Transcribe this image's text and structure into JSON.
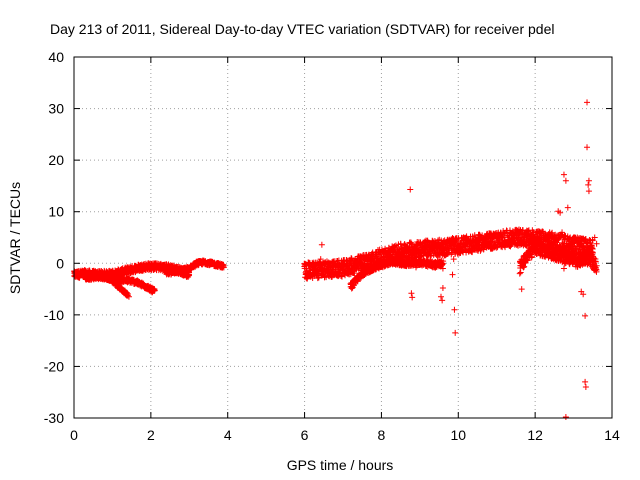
{
  "chart_data": {
    "type": "scatter",
    "title": "Day 213 of 2011, Sidereal Day-to-day VTEC variation (SDTVAR) for receiver pdel",
    "xlabel": "GPS time / hours",
    "ylabel": "SDTVAR / TECUs",
    "xlim": [
      0,
      14
    ],
    "ylim": [
      -30,
      40
    ],
    "xticks": [
      0,
      2,
      4,
      6,
      8,
      10,
      12,
      14
    ],
    "yticks": [
      -30,
      -20,
      -10,
      0,
      10,
      20,
      30,
      40
    ],
    "grid": true,
    "marker": "+",
    "color": "#ff0000",
    "series": [
      {
        "name": "SDTVAR",
        "bands": [
          {
            "x": [
              0.0,
              0.3,
              0.6,
              1.0,
              1.3,
              1.6,
              1.9,
              2.2,
              2.5,
              2.8,
              3.0
            ],
            "y": [
              -2.2,
              -2.0,
              -2.2,
              -2.1,
              -1.6,
              -1.0,
              -0.6,
              -0.7,
              -0.9,
              -1.5,
              -2.2
            ],
            "spread": 1.4
          },
          {
            "x": [
              0.3,
              0.7,
              1.0,
              1.3,
              1.6,
              1.9,
              2.1
            ],
            "y": [
              -2.8,
              -2.6,
              -3.0,
              -3.2,
              -3.6,
              -4.6,
              -5.5
            ],
            "spread": 0.9
          },
          {
            "x": [
              0.8,
              1.0,
              1.2,
              1.4
            ],
            "y": [
              -2.5,
              -3.5,
              -4.8,
              -6.2
            ],
            "spread": 0.6
          },
          {
            "x": [
              2.4,
              2.7,
              3.0,
              3.2,
              3.4,
              3.6,
              3.8,
              3.9
            ],
            "y": [
              -2.0,
              -1.5,
              -1.0,
              0.0,
              0.2,
              -0.1,
              -0.4,
              -0.6
            ],
            "spread": 0.8
          },
          {
            "x": [
              6.0,
              6.3,
              6.6,
              7.0,
              7.5,
              8.0,
              8.5,
              9.0,
              9.5,
              10.0,
              10.5,
              11.0,
              11.5,
              12.0,
              12.5,
              13.0,
              13.5
            ],
            "y": [
              -1.5,
              -1.3,
              -1.2,
              -1.0,
              0.0,
              1.2,
              2.2,
              2.8,
              3.0,
              3.4,
              3.9,
              4.5,
              5.0,
              4.8,
              4.3,
              3.5,
              3.0
            ],
            "spread": 3.2
          },
          {
            "x": [
              7.2,
              7.4,
              7.6,
              7.9,
              8.3
            ],
            "y": [
              -4.5,
              -2.8,
              -1.5,
              -0.5,
              0.5
            ],
            "spread": 1.2
          },
          {
            "x": [
              8.2,
              8.6,
              9.0,
              9.4,
              9.6
            ],
            "y": [
              0.5,
              0.0,
              0.2,
              -0.3,
              0.0
            ],
            "spread": 1.2
          },
          {
            "x": [
              11.6,
              11.8,
              12.0,
              12.2,
              12.5,
              12.8,
              13.1,
              13.4,
              13.6
            ],
            "y": [
              -1.0,
              1.5,
              3.0,
              2.5,
              2.0,
              1.0,
              0.5,
              1.0,
              -0.5
            ],
            "spread": 2.5
          }
        ],
        "points": [
          [
            1.43,
            -6.5
          ],
          [
            6.45,
            3.6
          ],
          [
            6.42,
            0.8
          ],
          [
            8.75,
            14.3
          ],
          [
            8.78,
            -5.8
          ],
          [
            8.8,
            -6.6
          ],
          [
            8.9,
            -0.8
          ],
          [
            9.1,
            -0.3
          ],
          [
            9.5,
            0.6
          ],
          [
            9.6,
            -4.8
          ],
          [
            9.55,
            -6.5
          ],
          [
            9.58,
            -7.2
          ],
          [
            9.6,
            -1.0
          ],
          [
            9.85,
            -2.2
          ],
          [
            9.9,
            -9.0
          ],
          [
            9.92,
            -13.5
          ],
          [
            9.88,
            0.8
          ],
          [
            11.65,
            -5.0
          ],
          [
            11.6,
            -2.0
          ],
          [
            11.7,
            0.5
          ],
          [
            12.6,
            10.1
          ],
          [
            12.65,
            9.8
          ],
          [
            12.75,
            17.2
          ],
          [
            12.8,
            16.0
          ],
          [
            12.85,
            10.8
          ],
          [
            12.7,
            6.0
          ],
          [
            12.75,
            -1.0
          ],
          [
            12.8,
            -29.8
          ],
          [
            12.9,
            3.5
          ],
          [
            13.2,
            -5.5
          ],
          [
            13.25,
            -6.0
          ],
          [
            13.3,
            -10.2
          ],
          [
            13.3,
            -23.0
          ],
          [
            13.32,
            -24.0
          ],
          [
            13.35,
            31.2
          ],
          [
            13.35,
            22.5
          ],
          [
            13.4,
            16.0
          ],
          [
            13.38,
            15.2
          ],
          [
            13.4,
            14.0
          ],
          [
            13.5,
            2.0
          ],
          [
            13.55,
            5.0
          ],
          [
            13.6,
            3.8
          ]
        ]
      }
    ]
  }
}
